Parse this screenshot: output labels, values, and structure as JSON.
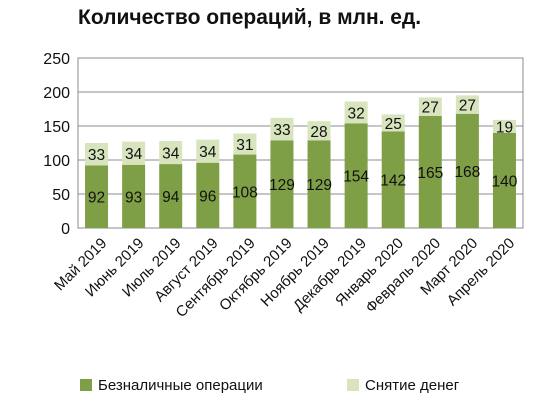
{
  "chart_data": {
    "type": "bar",
    "stacked": true,
    "title": "Количество операций, в млн. ед.",
    "categories": [
      "Май 2019",
      "Июнь 2019",
      "Июль 2019",
      "Август 2019",
      "Сентябрь 2019",
      "Октябрь 2019",
      "Ноябрь 2019",
      "Декабрь 2019",
      "Январь 2020",
      "Февраль 2020",
      "Март 2020",
      "Апрель 2020"
    ],
    "series": [
      {
        "name": "Безналичные операции",
        "color": "#7f9f46",
        "values": [
          92,
          93,
          94,
          96,
          108,
          129,
          129,
          154,
          142,
          165,
          168,
          140
        ]
      },
      {
        "name": "Снятие денег",
        "color": "#d7e4bd",
        "values": [
          33,
          34,
          34,
          34,
          31,
          33,
          28,
          32,
          25,
          27,
          27,
          19
        ]
      }
    ],
    "ylim": [
      0,
      250
    ],
    "yticks": [
      0,
      50,
      100,
      150,
      200,
      250
    ],
    "grid": true,
    "legend": "bottom",
    "xlabel": "",
    "ylabel": ""
  }
}
